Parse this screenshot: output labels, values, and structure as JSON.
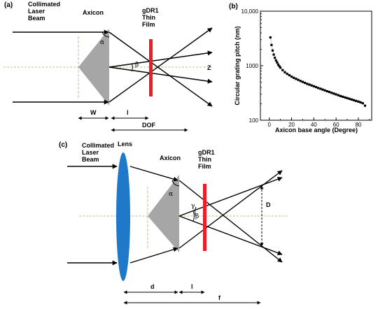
{
  "panel_a": {
    "panel_label": "(a)",
    "beam_label": [
      "Collimated",
      "Laser",
      "Beam"
    ],
    "axicon_label": "Axicon",
    "film_label": [
      "gDR1",
      "Thin",
      "Film"
    ],
    "alpha": "α",
    "beta": "β",
    "axis_label": "Z",
    "w_label": "W",
    "l_label": "l",
    "dof_label": "DOF"
  },
  "panel_b": {
    "panel_label": "(b)"
  },
  "panel_c": {
    "panel_label": "(c)",
    "beam_label": [
      "Collimated",
      "Laser",
      "Beam"
    ],
    "lens_label": "Lens",
    "axicon_label": "Axicon",
    "film_label": [
      "gDR1",
      "Thin",
      "Film"
    ],
    "alpha": "α",
    "beta": "β",
    "gamma": "γ",
    "d_label": "D",
    "dd_label": "d",
    "l_label": "l",
    "f_label": "f"
  },
  "colors": {
    "film": "#ee1c25",
    "lens": "#1f78c8",
    "axicon": "#a6a6a6",
    "axis": "#c9b98a"
  },
  "chart_data": {
    "type": "scatter",
    "xlabel": "Axicon base angle (Degree)",
    "ylabel": "Circular grating pitch (nm)",
    "xlim": [
      -8,
      92
    ],
    "ylim": [
      100,
      10000
    ],
    "yscale": "log",
    "x_ticks": [
      "0",
      "20",
      "40",
      "60",
      "80"
    ],
    "y_ticks": [
      "100",
      "1000",
      "10,000"
    ],
    "x": [
      1,
      2,
      3,
      4,
      5,
      6,
      7,
      8,
      9,
      10,
      12,
      14,
      16,
      18,
      20,
      22,
      24,
      26,
      28,
      30,
      32,
      34,
      36,
      38,
      40,
      42,
      44,
      46,
      48,
      50,
      52,
      54,
      56,
      58,
      60,
      62,
      64,
      66,
      68,
      70,
      72,
      74,
      76,
      78,
      80,
      82,
      84,
      86
    ],
    "y": [
      3300,
      2400,
      1900,
      1600,
      1400,
      1250,
      1150,
      1050,
      980,
      920,
      830,
      760,
      710,
      670,
      630,
      600,
      575,
      550,
      525,
      505,
      485,
      465,
      450,
      435,
      420,
      405,
      390,
      378,
      365,
      352,
      340,
      330,
      318,
      308,
      298,
      288,
      278,
      270,
      262,
      255,
      247,
      240,
      233,
      226,
      220,
      213,
      205,
      185
    ]
  }
}
